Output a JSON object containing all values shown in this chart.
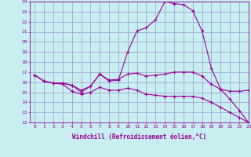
{
  "xlabel": "Windchill (Refroidissement éolien,°C)",
  "background_color": "#c8eef0",
  "line_color": "#990099",
  "grid_color": "#9999cc",
  "x_hours": [
    0,
    1,
    2,
    3,
    4,
    5,
    6,
    7,
    8,
    9,
    10,
    11,
    12,
    13,
    14,
    15,
    16,
    17,
    18,
    19,
    20,
    21,
    22,
    23
  ],
  "temp_line": [
    16.7,
    16.1,
    15.9,
    15.9,
    15.7,
    15.0,
    15.6,
    16.8,
    16.1,
    16.2,
    19.0,
    21.1,
    21.4,
    22.2,
    24.0,
    23.8,
    23.7,
    23.1,
    21.1,
    17.4,
    15.3,
    14.3,
    13.2,
    12.0
  ],
  "windchill_high": [
    16.7,
    16.1,
    15.9,
    15.9,
    15.7,
    15.2,
    15.6,
    16.8,
    16.2,
    16.3,
    16.8,
    16.9,
    16.6,
    16.7,
    16.8,
    17.0,
    17.0,
    17.0,
    16.6,
    15.8,
    15.3,
    15.1,
    15.1,
    15.2
  ],
  "windchill_low": [
    16.7,
    16.1,
    15.9,
    15.8,
    15.1,
    14.8,
    15.0,
    15.5,
    15.2,
    15.2,
    15.4,
    15.2,
    14.8,
    14.7,
    14.6,
    14.6,
    14.6,
    14.6,
    14.4,
    14.0,
    13.5,
    13.0,
    12.5,
    12.0
  ],
  "ylim": [
    12,
    24
  ],
  "xlim": [
    -0.5,
    23
  ],
  "yticks": [
    12,
    13,
    14,
    15,
    16,
    17,
    18,
    19,
    20,
    21,
    22,
    23,
    24
  ],
  "xticks": [
    0,
    1,
    2,
    3,
    4,
    5,
    6,
    7,
    8,
    9,
    10,
    11,
    12,
    13,
    14,
    15,
    16,
    17,
    18,
    19,
    20,
    21,
    22,
    23
  ]
}
